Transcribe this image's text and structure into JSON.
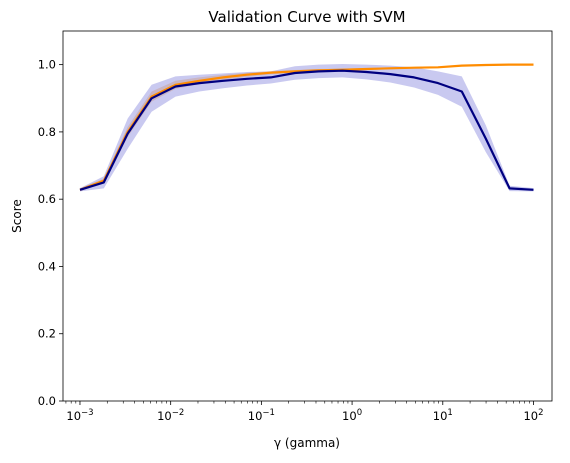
{
  "chart_data": {
    "type": "line",
    "title": "Validation Curve with SVM",
    "xlabel": "γ (gamma)",
    "ylabel": "Score",
    "xscale": "log",
    "xlim": [
      0.00065,
      160
    ],
    "ylim": [
      0.0,
      1.1
    ],
    "grid": false,
    "legend": "none",
    "x_ticks": [
      {
        "value": 0.001,
        "base": "10",
        "exp": "−3"
      },
      {
        "value": 0.01,
        "base": "10",
        "exp": "−2"
      },
      {
        "value": 0.1,
        "base": "10",
        "exp": "−1"
      },
      {
        "value": 1,
        "base": "10",
        "exp": "0"
      },
      {
        "value": 10,
        "base": "10",
        "exp": "1"
      },
      {
        "value": 100,
        "base": "10",
        "exp": "2"
      }
    ],
    "y_ticks": [
      {
        "value": 0.0,
        "label": "0.0"
      },
      {
        "value": 0.2,
        "label": "0.2"
      },
      {
        "value": 0.4,
        "label": "0.4"
      },
      {
        "value": 0.6,
        "label": "0.6"
      },
      {
        "value": 0.8,
        "label": "0.8"
      },
      {
        "value": 1.0,
        "label": "1.0"
      }
    ],
    "x": [
      0.001,
      0.00183,
      0.00336,
      0.00616,
      0.0113,
      0.0207,
      0.0379,
      0.0695,
      0.127,
      0.234,
      0.428,
      0.785,
      1.44,
      2.64,
      4.83,
      8.86,
      16.2,
      29.8,
      54.6,
      100
    ],
    "series": [
      {
        "color": "#ff8c00",
        "values": [
          0.628,
          0.655,
          0.8,
          0.905,
          0.94,
          0.952,
          0.962,
          0.97,
          0.976,
          0.98,
          0.983,
          0.985,
          0.987,
          0.989,
          0.991,
          0.992,
          0.997,
          0.999,
          1.0,
          1.0
        ],
        "band": [
          0.004,
          0.006,
          0.015,
          0.015,
          0.012,
          0.01,
          0.008,
          0.006,
          0.005,
          0.004,
          0.004,
          0.003,
          0.003,
          0.003,
          0.002,
          0.002,
          0.001,
          0.001,
          0.0,
          0.0
        ]
      },
      {
        "color": "#000080",
        "band_color": "#4d4dcc",
        "values": [
          0.628,
          0.65,
          0.795,
          0.9,
          0.935,
          0.945,
          0.952,
          0.958,
          0.962,
          0.975,
          0.98,
          0.982,
          0.978,
          0.972,
          0.962,
          0.945,
          0.92,
          0.78,
          0.632,
          0.628
        ],
        "band": [
          0.005,
          0.018,
          0.045,
          0.04,
          0.03,
          0.025,
          0.022,
          0.02,
          0.018,
          0.02,
          0.02,
          0.02,
          0.022,
          0.025,
          0.03,
          0.035,
          0.045,
          0.04,
          0.008,
          0.005
        ]
      }
    ]
  }
}
